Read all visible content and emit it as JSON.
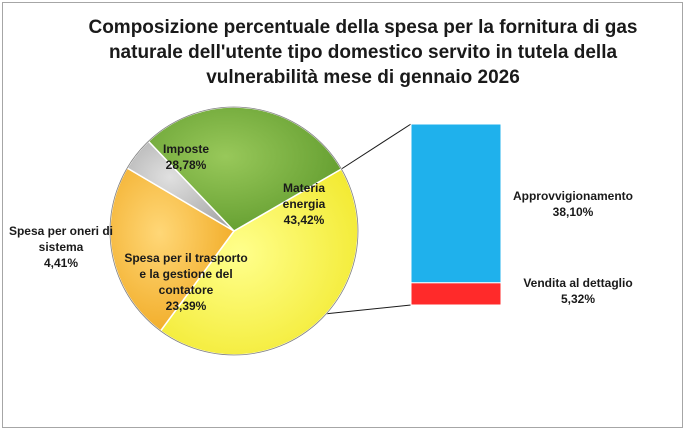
{
  "chart_data": {
    "type": "bar-of-pie",
    "title": "Composizione percentuale della spesa per la fornitura di gas naturale dell'utente tipo domestico servito in tutela della vulnerabilità mese di gennaio 2026",
    "pie": {
      "slices": [
        {
          "key": "materia",
          "lines": [
            "Materia",
            "energia"
          ],
          "value_label": "43,42%",
          "value": 43.42,
          "color": "#ffff4d"
        },
        {
          "key": "trasporto",
          "lines": [
            "Spesa per il trasporto",
            "e la gestione del",
            "contatore"
          ],
          "value_label": "23,39%",
          "value": 23.39,
          "color": "#fbb935"
        },
        {
          "key": "oneri",
          "lines": [
            "Spesa per oneri di",
            "sistema"
          ],
          "value_label": "4,41%",
          "value": 4.41,
          "color": "#c0c0c0"
        },
        {
          "key": "imposte",
          "lines": [
            "Imposte"
          ],
          "value_label": "28,78%",
          "value": 28.78,
          "color": "#77b03d"
        }
      ]
    },
    "bar": {
      "segments": [
        {
          "key": "approv",
          "lines": [
            "Approvvigionamento"
          ],
          "value_label": "38,10%",
          "value": 38.1,
          "color": "#1fb1ec"
        },
        {
          "key": "vendita",
          "lines": [
            "Vendita al dettaglio"
          ],
          "value_label": "5,32%",
          "value": 5.32,
          "color": "#ff2a2a"
        }
      ]
    }
  }
}
